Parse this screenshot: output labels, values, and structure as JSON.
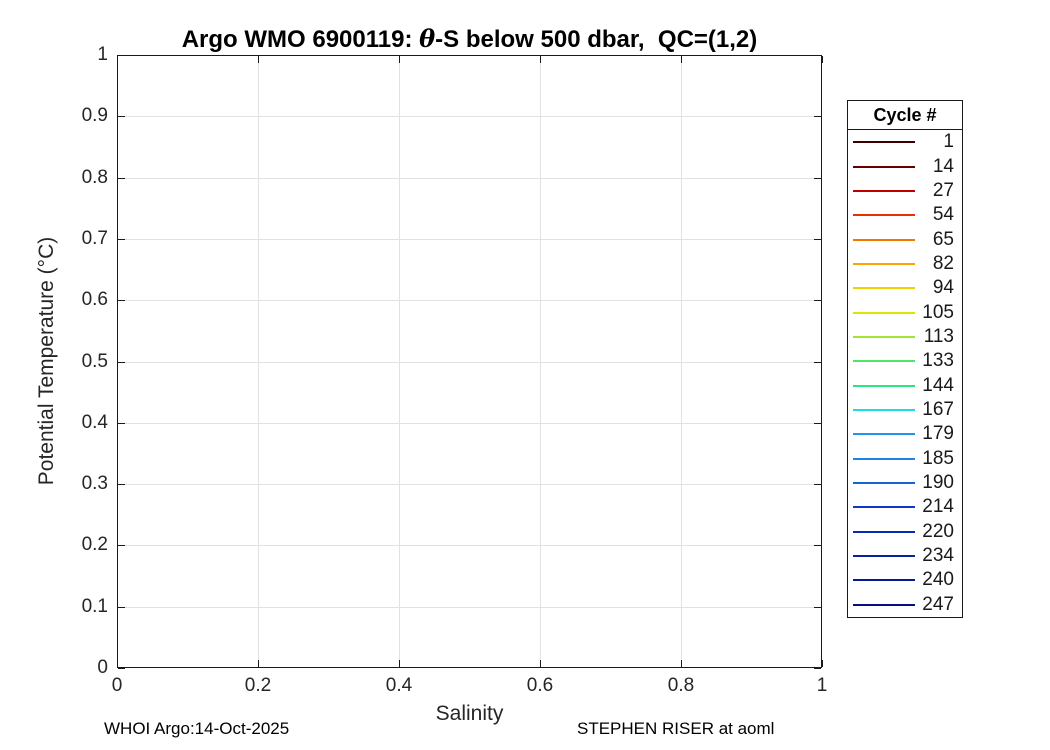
{
  "title": {
    "part1": "Argo WMO 6900119: ",
    "theta": "θ",
    "part2": "-S below 500 dbar,  QC=(1,2)"
  },
  "axes": {
    "xlabel": "Salinity",
    "ylabel": "Potential Temperature (°C)",
    "xticks": [
      "0",
      "0.2",
      "0.4",
      "0.6",
      "0.8",
      "1"
    ],
    "yticks": [
      "0",
      "0.1",
      "0.2",
      "0.3",
      "0.4",
      "0.5",
      "0.6",
      "0.7",
      "0.8",
      "0.9",
      "1"
    ],
    "grid_color": "#e2e2e2",
    "axis_color": "#1a1a1a"
  },
  "legend": {
    "title": "Cycle #",
    "entries": [
      {
        "label": "1",
        "color": "#3c0000"
      },
      {
        "label": "14",
        "color": "#640000"
      },
      {
        "label": "27",
        "color": "#c00000"
      },
      {
        "label": "54",
        "color": "#e63200"
      },
      {
        "label": "65",
        "color": "#f07800"
      },
      {
        "label": "82",
        "color": "#faa500"
      },
      {
        "label": "94",
        "color": "#f0d200"
      },
      {
        "label": "105",
        "color": "#dce600"
      },
      {
        "label": "113",
        "color": "#a0e632"
      },
      {
        "label": "133",
        "color": "#50e664"
      },
      {
        "label": "144",
        "color": "#28e682"
      },
      {
        "label": "167",
        "color": "#1edce6"
      },
      {
        "label": "179",
        "color": "#1e96f0"
      },
      {
        "label": "185",
        "color": "#1e82e6"
      },
      {
        "label": "190",
        "color": "#1464d2"
      },
      {
        "label": "214",
        "color": "#0f37cd"
      },
      {
        "label": "220",
        "color": "#0a28b4"
      },
      {
        "label": "234",
        "color": "#07209b"
      },
      {
        "label": "240",
        "color": "#051a8c"
      },
      {
        "label": "247",
        "color": "#02117d"
      }
    ]
  },
  "footer": {
    "left": "WHOI Argo:14-Oct-2025",
    "right": "STEPHEN RISER at aoml"
  },
  "chart_data": {
    "type": "scatter",
    "title": "Argo WMO 6900119: θ-S below 500 dbar,  QC=(1,2)",
    "xlabel": "Salinity",
    "ylabel": "Potential Temperature (°C)",
    "xlim": [
      0,
      1
    ],
    "ylim": [
      0,
      1
    ],
    "xticks": [
      0,
      0.2,
      0.4,
      0.6,
      0.8,
      1
    ],
    "yticks": [
      0,
      0.1,
      0.2,
      0.3,
      0.4,
      0.5,
      0.6,
      0.7,
      0.8,
      0.9,
      1
    ],
    "grid": true,
    "legend_title": "Cycle #",
    "legend_position": "outside-right",
    "series": [
      {
        "name": "1",
        "color": "#3c0000",
        "points": []
      },
      {
        "name": "14",
        "color": "#640000",
        "points": []
      },
      {
        "name": "27",
        "color": "#c00000",
        "points": []
      },
      {
        "name": "54",
        "color": "#e63200",
        "points": []
      },
      {
        "name": "65",
        "color": "#f07800",
        "points": []
      },
      {
        "name": "82",
        "color": "#faa500",
        "points": []
      },
      {
        "name": "94",
        "color": "#f0d200",
        "points": []
      },
      {
        "name": "105",
        "color": "#dce600",
        "points": []
      },
      {
        "name": "113",
        "color": "#a0e632",
        "points": []
      },
      {
        "name": "133",
        "color": "#50e664",
        "points": []
      },
      {
        "name": "144",
        "color": "#28e682",
        "points": []
      },
      {
        "name": "167",
        "color": "#1edce6",
        "points": []
      },
      {
        "name": "179",
        "color": "#1e96f0",
        "points": []
      },
      {
        "name": "185",
        "color": "#1e82e6",
        "points": []
      },
      {
        "name": "190",
        "color": "#1464d2",
        "points": []
      },
      {
        "name": "214",
        "color": "#0f37cd",
        "points": []
      },
      {
        "name": "220",
        "color": "#0a28b4",
        "points": []
      },
      {
        "name": "234",
        "color": "#07209b",
        "points": []
      },
      {
        "name": "240",
        "color": "#051a8c",
        "points": []
      },
      {
        "name": "247",
        "color": "#02117d",
        "points": []
      }
    ],
    "annotations": [
      "WHOI Argo:14-Oct-2025",
      "STEPHEN RISER at aoml"
    ],
    "note": "Plot area is empty — no data points are visibly drawn; only axes, grid and legend are shown."
  }
}
